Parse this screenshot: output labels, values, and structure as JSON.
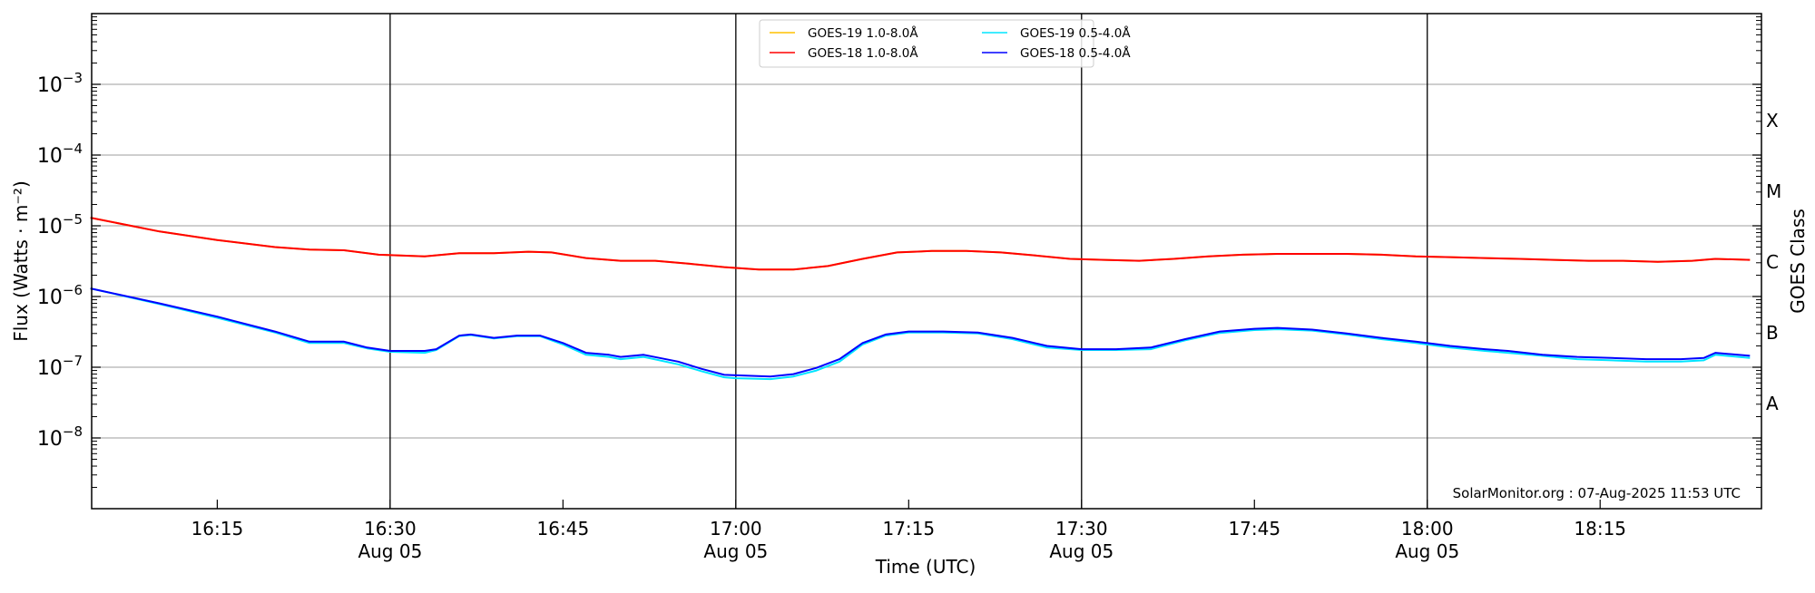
{
  "chart_data": {
    "type": "line",
    "title": "",
    "xlabel": "Time (UTC)",
    "ylabel": "Flux (Watts · m⁻²)",
    "ylabel_right": "GOES Class",
    "yscale": "log",
    "ylim": [
      1e-09,
      0.01
    ],
    "xlim": [
      "16:04",
      "18:29"
    ],
    "grid": true,
    "legend_position": "top-center",
    "yticks": [
      {
        "value": 0.001,
        "base": "10",
        "exp": "−3"
      },
      {
        "value": 0.0001,
        "base": "10",
        "exp": "−4"
      },
      {
        "value": 1e-05,
        "base": "10",
        "exp": "−5"
      },
      {
        "value": 1e-06,
        "base": "10",
        "exp": "−6"
      },
      {
        "value": 1e-07,
        "base": "10",
        "exp": "−7"
      },
      {
        "value": 1e-08,
        "base": "10",
        "exp": "−8"
      }
    ],
    "xticks": [
      {
        "time": "16:15",
        "label": "16:15",
        "sub": ""
      },
      {
        "time": "16:30",
        "label": "16:30",
        "sub": "Aug 05"
      },
      {
        "time": "16:45",
        "label": "16:45",
        "sub": ""
      },
      {
        "time": "17:00",
        "label": "17:00",
        "sub": "Aug 05"
      },
      {
        "time": "17:15",
        "label": "17:15",
        "sub": ""
      },
      {
        "time": "17:30",
        "label": "17:30",
        "sub": "Aug 05"
      },
      {
        "time": "17:45",
        "label": "17:45",
        "sub": ""
      },
      {
        "time": "18:00",
        "label": "18:00",
        "sub": "Aug 05"
      },
      {
        "time": "18:15",
        "label": "18:15",
        "sub": ""
      }
    ],
    "goes_classes": [
      {
        "label": "X",
        "value": 0.000316
      },
      {
        "label": "M",
        "value": 3.16e-05
      },
      {
        "label": "C",
        "value": 3.16e-06
      },
      {
        "label": "B",
        "value": 3.16e-07
      },
      {
        "label": "A",
        "value": 3.16e-08
      }
    ],
    "annotation": "SolarMonitor.org : 07-Aug-2025 11:53 UTC",
    "series": [
      {
        "name": "GOES-19 1.0-8.0Å",
        "color": "#ffc000",
        "x": [
          "16:04",
          "16:10",
          "16:15",
          "16:20",
          "16:23",
          "16:26",
          "16:29",
          "16:33",
          "16:36",
          "16:39",
          "16:42",
          "16:44",
          "16:47",
          "16:50",
          "16:53",
          "16:56",
          "16:59",
          "17:02",
          "17:05",
          "17:08",
          "17:11",
          "17:14",
          "17:17",
          "17:20",
          "17:23",
          "17:26",
          "17:29",
          "17:32",
          "17:35",
          "17:38",
          "17:41",
          "17:44",
          "17:47",
          "17:50",
          "17:53",
          "17:56",
          "17:59",
          "18:02",
          "18:05",
          "18:08",
          "18:11",
          "18:14",
          "18:17",
          "18:20",
          "18:23",
          "18:25",
          "18:28"
        ],
        "y": [
          1.3e-05,
          8.3e-06,
          6.3e-06,
          5e-06,
          4.6e-06,
          4.5e-06,
          3.9e-06,
          3.7e-06,
          4.1e-06,
          4.1e-06,
          4.3e-06,
          4.2e-06,
          3.5e-06,
          3.2e-06,
          3.2e-06,
          2.9e-06,
          2.6e-06,
          2.4e-06,
          2.4e-06,
          2.7e-06,
          3.4e-06,
          4.2e-06,
          4.4e-06,
          4.4e-06,
          4.2e-06,
          3.8e-06,
          3.4e-06,
          3.3e-06,
          3.2e-06,
          3.4e-06,
          3.7e-06,
          3.9e-06,
          4e-06,
          4e-06,
          4e-06,
          3.9e-06,
          3.7e-06,
          3.6e-06,
          3.5e-06,
          3.4e-06,
          3.3e-06,
          3.2e-06,
          3.2e-06,
          3.1e-06,
          3.2e-06,
          3.4e-06,
          3.3e-06
        ]
      },
      {
        "name": "GOES-18 1.0-8.0Å",
        "color": "#ff0000",
        "x": [
          "16:04",
          "16:10",
          "16:15",
          "16:20",
          "16:23",
          "16:26",
          "16:29",
          "16:33",
          "16:36",
          "16:39",
          "16:42",
          "16:44",
          "16:47",
          "16:50",
          "16:53",
          "16:56",
          "16:59",
          "17:02",
          "17:05",
          "17:08",
          "17:11",
          "17:14",
          "17:17",
          "17:20",
          "17:23",
          "17:26",
          "17:29",
          "17:32",
          "17:35",
          "17:38",
          "17:41",
          "17:44",
          "17:47",
          "17:50",
          "17:53",
          "17:56",
          "17:59",
          "18:02",
          "18:05",
          "18:08",
          "18:11",
          "18:14",
          "18:17",
          "18:20",
          "18:23",
          "18:25",
          "18:28"
        ],
        "y": [
          1.3e-05,
          8.3e-06,
          6.3e-06,
          5e-06,
          4.6e-06,
          4.5e-06,
          3.9e-06,
          3.7e-06,
          4.1e-06,
          4.1e-06,
          4.3e-06,
          4.2e-06,
          3.5e-06,
          3.2e-06,
          3.2e-06,
          2.9e-06,
          2.6e-06,
          2.4e-06,
          2.4e-06,
          2.7e-06,
          3.4e-06,
          4.2e-06,
          4.4e-06,
          4.4e-06,
          4.2e-06,
          3.8e-06,
          3.4e-06,
          3.3e-06,
          3.2e-06,
          3.4e-06,
          3.7e-06,
          3.9e-06,
          4e-06,
          4e-06,
          4e-06,
          3.9e-06,
          3.7e-06,
          3.6e-06,
          3.5e-06,
          3.4e-06,
          3.3e-06,
          3.2e-06,
          3.2e-06,
          3.1e-06,
          3.2e-06,
          3.4e-06,
          3.3e-06
        ]
      },
      {
        "name": "GOES-19 0.5-4.0Å",
        "color": "#00e5ff",
        "x": [
          "16:04",
          "16:10",
          "16:15",
          "16:20",
          "16:23",
          "16:26",
          "16:28",
          "16:30",
          "16:33",
          "16:34",
          "16:36",
          "16:37",
          "16:39",
          "16:41",
          "16:43",
          "16:45",
          "16:47",
          "16:49",
          "16:50",
          "16:52",
          "16:55",
          "16:57",
          "16:59",
          "17:00",
          "17:03",
          "17:05",
          "17:07",
          "17:09",
          "17:11",
          "17:13",
          "17:15",
          "17:18",
          "17:21",
          "17:24",
          "17:27",
          "17:30",
          "17:33",
          "17:36",
          "17:39",
          "17:42",
          "17:45",
          "17:47",
          "17:50",
          "17:53",
          "17:56",
          "17:59",
          "18:02",
          "18:05",
          "18:07",
          "18:10",
          "18:13",
          "18:16",
          "18:19",
          "18:22",
          "18:24",
          "18:25",
          "18:28"
        ],
        "y": [
          1.3e-06,
          7.8e-07,
          5e-07,
          3.1e-07,
          2.2e-07,
          2.2e-07,
          1.85e-07,
          1.65e-07,
          1.6e-07,
          1.75e-07,
          2.75e-07,
          2.85e-07,
          2.55e-07,
          2.75e-07,
          2.75e-07,
          2.1e-07,
          1.5e-07,
          1.4e-07,
          1.3e-07,
          1.4e-07,
          1.1e-07,
          8.8e-08,
          7.2e-08,
          7e-08,
          6.8e-08,
          7.4e-08,
          9e-08,
          1.2e-07,
          2.1e-07,
          2.8e-07,
          3.1e-07,
          3.1e-07,
          3e-07,
          2.5e-07,
          1.9e-07,
          1.75e-07,
          1.75e-07,
          1.8e-07,
          2.4e-07,
          3.05e-07,
          3.35e-07,
          3.45e-07,
          3.3e-07,
          2.9e-07,
          2.5e-07,
          2.2e-07,
          1.9e-07,
          1.7e-07,
          1.6e-07,
          1.45e-07,
          1.3e-07,
          1.25e-07,
          1.2e-07,
          1.2e-07,
          1.25e-07,
          1.5e-07,
          1.35e-07
        ]
      },
      {
        "name": "GOES-18 0.5-4.0Å",
        "color": "#0000ff",
        "x": [
          "16:04",
          "16:10",
          "16:15",
          "16:20",
          "16:23",
          "16:26",
          "16:28",
          "16:30",
          "16:33",
          "16:34",
          "16:36",
          "16:37",
          "16:39",
          "16:41",
          "16:43",
          "16:45",
          "16:47",
          "16:49",
          "16:50",
          "16:52",
          "16:55",
          "16:57",
          "16:59",
          "17:00",
          "17:03",
          "17:05",
          "17:07",
          "17:09",
          "17:11",
          "17:13",
          "17:15",
          "17:18",
          "17:21",
          "17:24",
          "17:27",
          "17:30",
          "17:33",
          "17:36",
          "17:39",
          "17:42",
          "17:45",
          "17:47",
          "17:50",
          "17:53",
          "17:56",
          "17:59",
          "18:02",
          "18:05",
          "18:07",
          "18:10",
          "18:13",
          "18:16",
          "18:19",
          "18:22",
          "18:24",
          "18:25",
          "18:28"
        ],
        "y": [
          1.3e-06,
          8e-07,
          5.2e-07,
          3.2e-07,
          2.3e-07,
          2.3e-07,
          1.9e-07,
          1.7e-07,
          1.7e-07,
          1.8e-07,
          2.8e-07,
          2.9e-07,
          2.6e-07,
          2.8e-07,
          2.8e-07,
          2.2e-07,
          1.6e-07,
          1.5e-07,
          1.4e-07,
          1.5e-07,
          1.2e-07,
          9.5e-08,
          7.8e-08,
          7.7e-08,
          7.4e-08,
          8e-08,
          9.8e-08,
          1.3e-07,
          2.2e-07,
          2.9e-07,
          3.2e-07,
          3.2e-07,
          3.1e-07,
          2.6e-07,
          2e-07,
          1.8e-07,
          1.8e-07,
          1.9e-07,
          2.5e-07,
          3.2e-07,
          3.5e-07,
          3.6e-07,
          3.4e-07,
          3e-07,
          2.6e-07,
          2.3e-07,
          2e-07,
          1.8e-07,
          1.7e-07,
          1.5e-07,
          1.4e-07,
          1.35e-07,
          1.3e-07,
          1.3e-07,
          1.35e-07,
          1.6e-07,
          1.45e-07
        ]
      }
    ]
  }
}
